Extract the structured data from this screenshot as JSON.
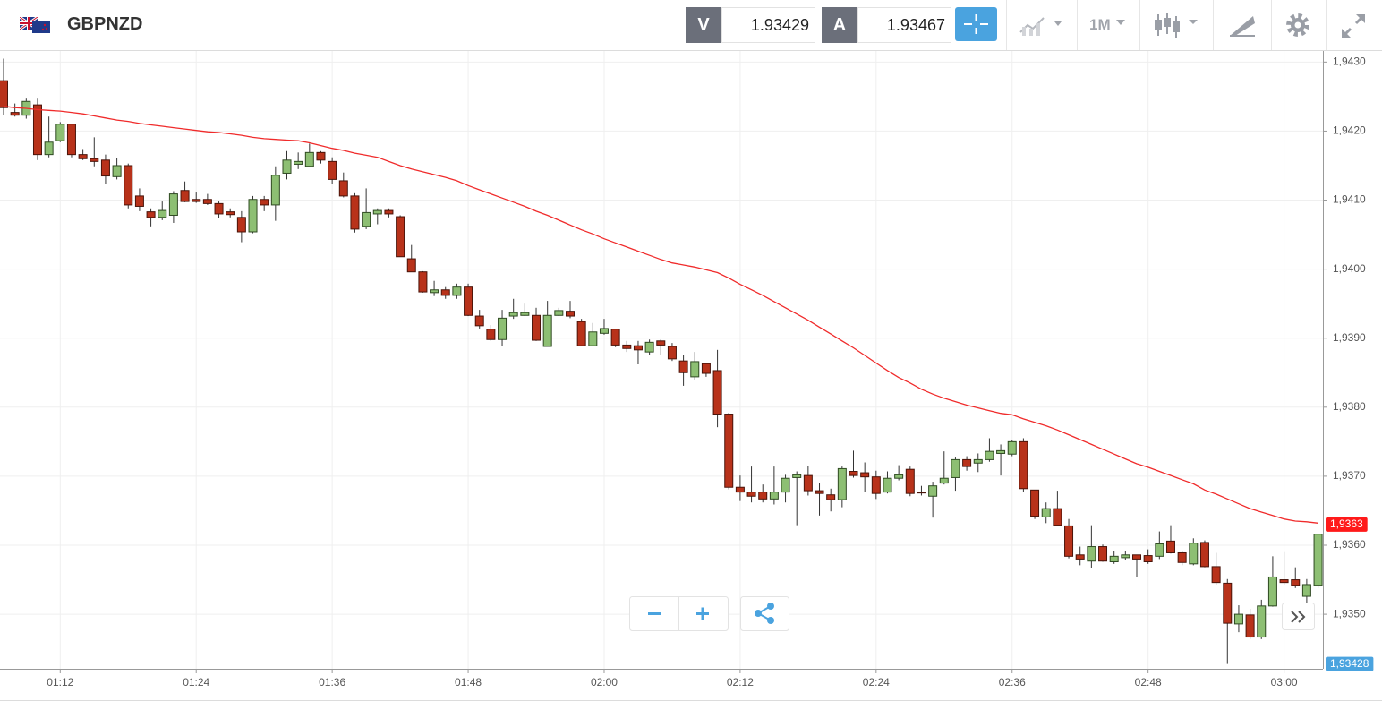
{
  "toolbar": {
    "symbol": "GBPNZD",
    "bid_label": "V",
    "bid": "1.93429",
    "ask_label": "A",
    "ask": "1.93467",
    "timeframe": "1M"
  },
  "chart_data": {
    "type": "candlestick",
    "up_color": "#8dbf73",
    "down_color": "#b8321a",
    "categories": [
      null,
      null,
      null,
      null,
      null,
      "01:12",
      null,
      null,
      null,
      null,
      null,
      null,
      null,
      null,
      null,
      null,
      null,
      "01:24",
      null,
      null,
      null,
      null,
      null,
      null,
      null,
      null,
      null,
      null,
      null,
      "01:36",
      null,
      null,
      null,
      null,
      null,
      null,
      null,
      null,
      null,
      null,
      null,
      "01:48",
      null,
      null,
      null,
      null,
      null,
      null,
      null,
      null,
      null,
      null,
      null,
      "02:00",
      null,
      null,
      null,
      null,
      null,
      null,
      null,
      null,
      null,
      null,
      null,
      "02:12",
      null,
      null,
      null,
      null,
      null,
      null,
      null,
      null,
      null,
      null,
      null,
      "02:24",
      null,
      null,
      null,
      null,
      null,
      null,
      null,
      null,
      null,
      null,
      null,
      "02:36",
      null,
      null,
      null,
      null,
      null,
      null,
      null,
      null,
      null,
      null,
      null,
      "02:48",
      null,
      null,
      null,
      null,
      null,
      null,
      null,
      null,
      null,
      null,
      null,
      "03:00",
      null,
      null,
      null
    ],
    "open": [
      1.94273,
      1.94227,
      1.94223,
      1.94238,
      1.94166,
      1.94186,
      1.9421,
      1.94166,
      1.9416,
      1.94158,
      1.94134,
      1.9415,
      1.94106,
      1.94083,
      1.94075,
      1.94078,
      1.94114,
      1.94101,
      1.94101,
      1.94095,
      1.94083,
      1.94075,
      1.94054,
      1.94101,
      1.94093,
      1.94139,
      1.94152,
      1.94149,
      1.94169,
      1.94156,
      1.94128,
      1.94106,
      1.94062,
      1.9408,
      1.94085,
      1.94076,
      1.94015,
      1.93996,
      1.93966,
      1.9397,
      1.93962,
      1.93974,
      1.93932,
      1.93913,
      1.93898,
      1.93932,
      1.93933,
      1.93933,
      1.93888,
      1.93933,
      1.93939,
      1.93924,
      1.93889,
      1.93907,
      1.93913,
      1.9389,
      1.93889,
      1.9388,
      1.93896,
      1.93888,
      1.93867,
      1.93844,
      1.93863,
      1.93853,
      1.9379,
      1.93684,
      1.93677,
      1.93677,
      1.93667,
      1.93677,
      1.93698,
      1.93701,
      1.93679,
      1.93673,
      1.93666,
      1.93707,
      1.93705,
      1.93699,
      1.93677,
      1.93697,
      1.9371,
      1.93677,
      1.93671,
      1.9369,
      1.93698,
      1.93724,
      1.93719,
      1.93724,
      1.93733,
      1.93732,
      1.9375,
      1.9368,
      1.93641,
      1.93653,
      1.93628,
      1.93586,
      1.93577,
      1.93598,
      1.93576,
      1.93582,
      1.93586,
      1.93585,
      1.93584,
      1.93606,
      1.93589,
      1.93573,
      1.93604,
      1.93569,
      1.93545,
      1.93486,
      1.93499,
      1.93467,
      1.93512,
      1.9355,
      1.9355,
      1.93526,
      1.93542
    ],
    "high": [
      1.94305,
      1.9424,
      1.94247,
      1.94247,
      1.94221,
      1.94213,
      1.9421,
      1.94174,
      1.94191,
      1.94166,
      1.94161,
      1.94153,
      1.94117,
      1.94088,
      1.94098,
      1.94113,
      1.94127,
      1.94111,
      1.94109,
      1.94098,
      1.94088,
      1.94084,
      1.94106,
      1.94106,
      1.94149,
      1.94171,
      1.94169,
      1.94182,
      1.94171,
      1.94162,
      1.9414,
      1.9411,
      1.94117,
      1.94088,
      1.94088,
      1.94078,
      1.94035,
      1.93997,
      1.93983,
      1.93974,
      1.93979,
      1.93979,
      1.93941,
      1.93919,
      1.93941,
      1.93957,
      1.9395,
      1.93944,
      1.93954,
      1.93944,
      1.93954,
      1.93928,
      1.93922,
      1.93928,
      1.93913,
      1.93896,
      1.93896,
      1.93898,
      1.93898,
      1.93893,
      1.93876,
      1.9388,
      1.93864,
      1.93883,
      1.93792,
      1.93701,
      1.93714,
      1.93688,
      1.93714,
      1.93702,
      1.93707,
      1.93715,
      1.9369,
      1.93682,
      1.93714,
      1.93737,
      1.9372,
      1.93708,
      1.93707,
      1.93716,
      1.93714,
      1.93686,
      1.93692,
      1.93736,
      1.93727,
      1.93729,
      1.93733,
      1.93755,
      1.93746,
      1.93753,
      1.93755,
      1.9368,
      1.93662,
      1.93679,
      1.93638,
      1.93598,
      1.93629,
      1.93601,
      1.93591,
      1.93591,
      1.93586,
      1.93594,
      1.9362,
      1.93629,
      1.93591,
      1.9361,
      1.93607,
      1.93589,
      1.93551,
      1.93513,
      1.93508,
      1.93521,
      1.93584,
      1.9359,
      1.93568,
      1.93551,
      1.93616
    ],
    "low": [
      1.94223,
      1.94221,
      1.94218,
      1.94158,
      1.94162,
      1.94184,
      1.94162,
      1.94158,
      1.94149,
      1.94123,
      1.9413,
      1.94088,
      1.94084,
      1.94062,
      1.94071,
      1.94067,
      1.94097,
      1.94096,
      1.94093,
      1.94074,
      1.94075,
      1.94039,
      1.94052,
      1.94084,
      1.9407,
      1.9413,
      1.94145,
      1.94149,
      1.94153,
      1.94123,
      1.94104,
      1.94053,
      1.94058,
      1.94065,
      1.94075,
      1.94018,
      1.93996,
      1.93966,
      1.93961,
      1.93957,
      1.93957,
      1.93932,
      1.93914,
      1.93896,
      1.93889,
      1.93928,
      1.93932,
      1.93896,
      1.93888,
      1.93932,
      1.93929,
      1.93888,
      1.93888,
      1.93905,
      1.93887,
      1.9388,
      1.93862,
      1.93875,
      1.93875,
      1.93867,
      1.93831,
      1.9384,
      1.93844,
      1.93771,
      1.93681,
      1.93664,
      1.93662,
      1.93662,
      1.93659,
      1.93662,
      1.93629,
      1.93672,
      1.93643,
      1.93649,
      1.93655,
      1.93698,
      1.93677,
      1.93667,
      1.93675,
      1.93694,
      1.93671,
      1.93672,
      1.9364,
      1.93688,
      1.93679,
      1.93708,
      1.93706,
      1.93721,
      1.93701,
      1.93729,
      1.93677,
      1.93638,
      1.93632,
      1.93628,
      1.93581,
      1.93571,
      1.93567,
      1.93576,
      1.93573,
      1.93578,
      1.93554,
      1.93573,
      1.9358,
      1.93588,
      1.93571,
      1.93571,
      1.93568,
      1.93543,
      1.93428,
      1.93474,
      1.93464,
      1.93464,
      1.93511,
      1.93543,
      1.93538,
      1.93515,
      1.93538
    ],
    "close": [
      1.94234,
      1.94223,
      1.94243,
      1.94166,
      1.94184,
      1.9421,
      1.94166,
      1.9416,
      1.94156,
      1.94135,
      1.9415,
      1.94093,
      1.94091,
      1.94075,
      1.94085,
      1.94109,
      1.94098,
      1.94098,
      1.94095,
      1.9408,
      1.94079,
      1.94054,
      1.94101,
      1.94093,
      1.94136,
      1.94158,
      1.94156,
      1.94169,
      1.94158,
      1.9413,
      1.94106,
      1.94058,
      1.94082,
      1.94085,
      1.9408,
      1.94018,
      1.93996,
      1.93967,
      1.9397,
      1.93962,
      1.93974,
      1.93933,
      1.93918,
      1.93898,
      1.93929,
      1.93937,
      1.93937,
      1.93897,
      1.93933,
      1.9394,
      1.93932,
      1.93889,
      1.93909,
      1.93914,
      1.9389,
      1.93885,
      1.93883,
      1.93894,
      1.9389,
      1.9387,
      1.9385,
      1.93866,
      1.93849,
      1.9379,
      1.93684,
      1.93677,
      1.93671,
      1.93667,
      1.93677,
      1.93697,
      1.93702,
      1.93679,
      1.93675,
      1.93666,
      1.93711,
      1.93701,
      1.93699,
      1.93675,
      1.93697,
      1.93702,
      1.93675,
      1.93676,
      1.93686,
      1.93697,
      1.93724,
      1.93714,
      1.93724,
      1.93736,
      1.93737,
      1.9375,
      1.93682,
      1.93642,
      1.93653,
      1.93629,
      1.93584,
      1.9358,
      1.93598,
      1.93577,
      1.93584,
      1.93586,
      1.9358,
      1.93576,
      1.93602,
      1.93589,
      1.93575,
      1.93603,
      1.93569,
      1.93546,
      1.93487,
      1.935,
      1.93467,
      1.93512,
      1.93554,
      1.93546,
      1.93542,
      1.93543,
      1.93616
    ],
    "overlays": [
      {
        "type": "line",
        "color": "#f02b2b",
        "values": [
          1.94236,
          1.94234,
          1.94233,
          1.94231,
          1.9423,
          1.94229,
          1.94227,
          1.94225,
          1.94222,
          1.94219,
          1.94216,
          1.94214,
          1.94211,
          1.94209,
          1.94207,
          1.94205,
          1.94203,
          1.94201,
          1.94199,
          1.94198,
          1.94196,
          1.94194,
          1.94191,
          1.94189,
          1.94188,
          1.94187,
          1.94186,
          1.94183,
          1.94179,
          1.94175,
          1.94172,
          1.94168,
          1.94165,
          1.94162,
          1.94156,
          1.9415,
          1.94145,
          1.94141,
          1.94137,
          1.94133,
          1.94128,
          1.94121,
          1.94115,
          1.94109,
          1.94103,
          1.94097,
          1.94091,
          1.94084,
          1.94078,
          1.94071,
          1.94064,
          1.94057,
          1.94051,
          1.94044,
          1.94038,
          1.94032,
          1.94026,
          1.9402,
          1.94014,
          1.94009,
          1.94006,
          1.94003,
          1.93999,
          1.93995,
          1.93987,
          1.93978,
          1.9397,
          1.93962,
          1.93953,
          1.93944,
          1.93935,
          1.93926,
          1.93916,
          1.93906,
          1.93896,
          1.93886,
          1.93875,
          1.93864,
          1.93853,
          1.93843,
          1.93835,
          1.93826,
          1.93819,
          1.93813,
          1.93808,
          1.93803,
          1.93799,
          1.93795,
          1.93791,
          1.93789,
          1.93783,
          1.93778,
          1.93773,
          1.93767,
          1.9376,
          1.93753,
          1.93746,
          1.93739,
          1.93732,
          1.93725,
          1.93718,
          1.93713,
          1.93707,
          1.93701,
          1.93695,
          1.93689,
          1.9368,
          1.93674,
          1.93667,
          1.9366,
          1.93653,
          1.93648,
          1.93643,
          1.93638,
          1.93635,
          1.93634,
          1.93632
        ]
      }
    ],
    "ylim": [
      1.93421,
      1.94316
    ],
    "yticks": [
      {
        "value": 1.943,
        "label": "1,9430"
      },
      {
        "value": 1.942,
        "label": "1,9420"
      },
      {
        "value": 1.941,
        "label": "1,9410"
      },
      {
        "value": 1.94,
        "label": "1,9400"
      },
      {
        "value": 1.939,
        "label": "1,9390"
      },
      {
        "value": 1.938,
        "label": "1,9380"
      },
      {
        "value": 1.937,
        "label": "1,9370"
      },
      {
        "value": 1.936,
        "label": "1,9360"
      },
      {
        "value": 1.935,
        "label": "1,9350"
      }
    ],
    "grid": true,
    "price_tags": [
      {
        "value": 1.9363,
        "label": "1,9363",
        "color": "#ff1a1a"
      },
      {
        "value": 1.93428,
        "label": "1,93428",
        "color": "#4aa3df"
      }
    ]
  }
}
